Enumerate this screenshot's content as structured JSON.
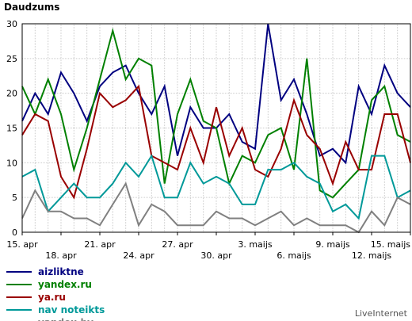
{
  "chart_data": {
    "type": "line",
    "title": "Daudzums",
    "brand": "LiveInternet",
    "ylim": [
      0,
      30
    ],
    "yticks": [
      0,
      5,
      10,
      15,
      20,
      25,
      30
    ],
    "grid": true,
    "legend_position": "bottom-left",
    "x": [
      "15. apr",
      "16. apr",
      "17. apr",
      "18. apr",
      "19. apr",
      "20. apr",
      "21. apr",
      "22. apr",
      "23. apr",
      "24. apr",
      "25. apr",
      "26. apr",
      "27. apr",
      "28. apr",
      "29. apr",
      "30. apr",
      "1. maijs",
      "2. maijs",
      "3. maijs",
      "4. maijs",
      "5. maijs",
      "6. maijs",
      "7. maijs",
      "8. maijs",
      "9. maijs",
      "10. maijs",
      "11. maijs",
      "12. maijs",
      "13. maijs",
      "14. maijs",
      "15. maijs"
    ],
    "xtick_labels": [
      {
        "index": 0,
        "label": "15. apr"
      },
      {
        "index": 3,
        "label": "18. apr"
      },
      {
        "index": 6,
        "label": "21. apr"
      },
      {
        "index": 9,
        "label": "24. apr"
      },
      {
        "index": 12,
        "label": "27. apr"
      },
      {
        "index": 15,
        "label": "30. apr"
      },
      {
        "index": 18,
        "label": "3. maijs"
      },
      {
        "index": 21,
        "label": "6. maijs"
      },
      {
        "index": 24,
        "label": "9. maijs"
      },
      {
        "index": 27,
        "label": "12. maijs"
      },
      {
        "index": 30,
        "label": "15. maijs"
      }
    ],
    "series": [
      {
        "name": "aizliktne",
        "color": "#000080",
        "values": [
          16,
          20,
          17,
          23,
          20,
          16,
          21,
          23,
          24,
          20,
          17,
          21,
          11,
          18,
          15,
          15,
          17,
          13,
          12,
          30,
          19,
          22,
          17,
          11,
          12,
          10,
          21,
          17,
          24,
          20,
          18
        ]
      },
      {
        "name": "yandex.ru",
        "color": "#008000",
        "values": [
          21,
          17,
          22,
          17,
          9,
          15,
          22,
          29,
          22,
          25,
          24,
          7,
          17,
          22,
          16,
          15,
          7,
          11,
          10,
          14,
          15,
          9,
          25,
          6,
          5,
          7,
          9,
          19,
          21,
          14,
          13
        ]
      },
      {
        "name": "ya.ru",
        "color": "#990000",
        "values": [
          14,
          17,
          16,
          8,
          5,
          12,
          20,
          18,
          19,
          21,
          11,
          10,
          9,
          15,
          10,
          18,
          11,
          15,
          9,
          8,
          12,
          19,
          14,
          12,
          7,
          13,
          9,
          9,
          17,
          17,
          10
        ]
      },
      {
        "name": "nav noteikts",
        "color": "#009999",
        "values": [
          8,
          9,
          3,
          5,
          7,
          5,
          5,
          7,
          10,
          8,
          11,
          5,
          5,
          10,
          7,
          8,
          7,
          4,
          4,
          9,
          9,
          10,
          8,
          7,
          3,
          4,
          2,
          11,
          11,
          5,
          6
        ]
      },
      {
        "name": "yandex.by",
        "color": "#808080",
        "values": [
          2,
          6,
          3,
          3,
          2,
          2,
          1,
          4,
          7,
          1,
          4,
          3,
          1,
          1,
          1,
          3,
          2,
          2,
          1,
          2,
          3,
          1,
          2,
          1,
          1,
          1,
          0,
          3,
          1,
          5,
          4
        ]
      }
    ]
  }
}
